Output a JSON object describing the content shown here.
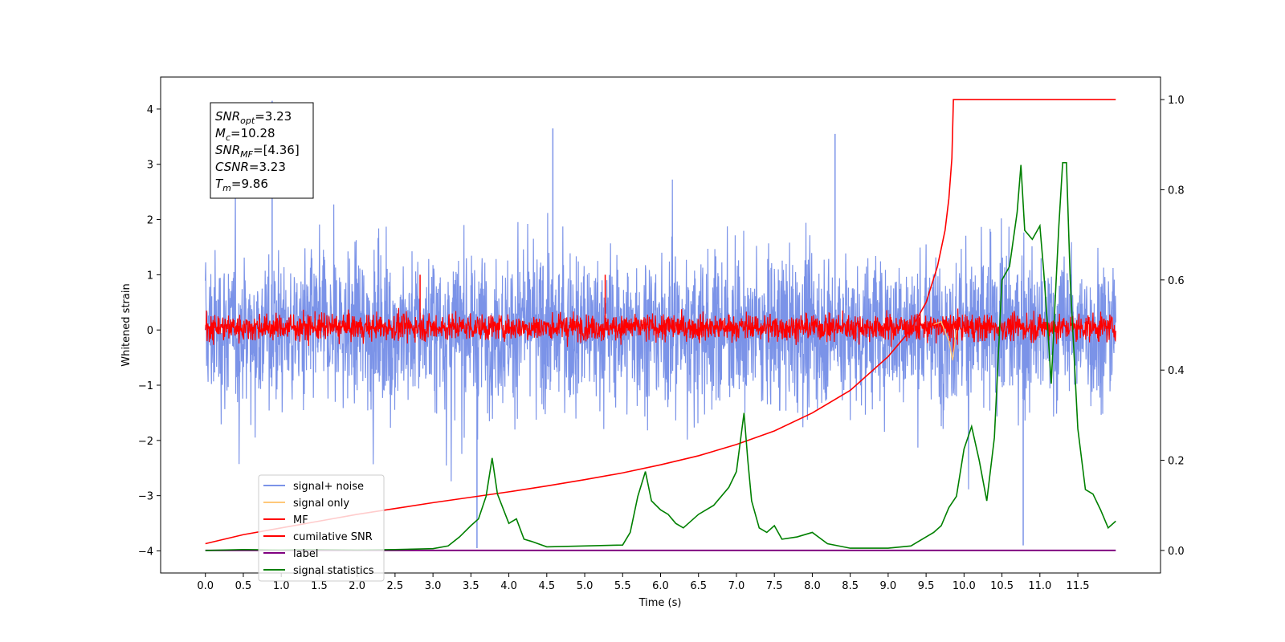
{
  "chart_data": {
    "type": "line",
    "xlabel": "Time (s)",
    "ylabel": "Whitened strain",
    "xlim": [
      -0.59,
      12.59
    ],
    "ylim": [
      -4.4,
      4.58
    ],
    "y2lim": [
      -0.05,
      1.05
    ],
    "x_ticks": [
      "0.0",
      "0.5",
      "1.0",
      "1.5",
      "2.0",
      "2.5",
      "3.0",
      "3.5",
      "4.0",
      "4.5",
      "5.0",
      "5.5",
      "6.0",
      "6.5",
      "7.0",
      "7.5",
      "8.0",
      "8.5",
      "9.0",
      "9.5",
      "10.0",
      "10.5",
      "11.0",
      "11.5"
    ],
    "y_ticks": [
      "4",
      "3",
      "2",
      "1",
      "0",
      "−1",
      "−2",
      "−3",
      "−4"
    ],
    "y2_ticks": [
      "1.0",
      "0.8",
      "0.6",
      "0.4",
      "0.2",
      "0.0"
    ],
    "annotation": {
      "lines": [
        {
          "var": "SNR",
          "sub": "opt",
          "value": "=3.23"
        },
        {
          "var": "M",
          "sub": "c",
          "value": "=10.28"
        },
        {
          "var": "SNR",
          "sub": "MF",
          "value": "=[4.36]"
        },
        {
          "var": "CSNR",
          "sub": "",
          "value": "=3.23"
        },
        {
          "var": "T",
          "sub": "m",
          "value": "=9.86"
        }
      ]
    },
    "legend": {
      "placement": "lower-left",
      "entries": [
        {
          "label": "signal+ noise",
          "color": "#7b93e8"
        },
        {
          "label": "signal only",
          "color": "#ffc87a"
        },
        {
          "label": "MF",
          "color": "#ff0000"
        },
        {
          "label": "cumilative SNR",
          "color": "#ff0000"
        },
        {
          "label": "label",
          "color": "#800080"
        },
        {
          "label": "signal statistics",
          "color": "#008000"
        }
      ]
    },
    "noise_band": {
      "t_start": 0.0,
      "t_end": 12.0,
      "typical_range": [
        -1.6,
        1.6
      ],
      "peaks": [
        4.15,
        3.65,
        3.55,
        -3.95,
        -3.9
      ]
    },
    "mf_band": {
      "t_start": 0.0,
      "t_end": 12.0,
      "typical_range": [
        -0.35,
        0.55
      ],
      "peaks": [
        1.0,
        1.0,
        -0.4
      ]
    },
    "signal_only": {
      "x": [
        9.6,
        9.7,
        9.8,
        9.85,
        9.9
      ],
      "y": [
        0.1,
        0.15,
        -0.2,
        -0.55,
        0.0
      ]
    },
    "cumulative_snr": {
      "axis": "right",
      "x": [
        0.0,
        0.5,
        1.0,
        1.5,
        2.0,
        2.5,
        3.0,
        3.5,
        4.0,
        4.5,
        5.0,
        5.5,
        6.0,
        6.5,
        7.0,
        7.5,
        8.0,
        8.5,
        9.0,
        9.3,
        9.5,
        9.65,
        9.75,
        9.8,
        9.84,
        9.86,
        12.0
      ],
      "y": [
        0.015,
        0.035,
        0.05,
        0.065,
        0.08,
        0.093,
        0.106,
        0.118,
        0.13,
        0.143,
        0.157,
        0.172,
        0.19,
        0.21,
        0.235,
        0.265,
        0.305,
        0.355,
        0.43,
        0.49,
        0.55,
        0.63,
        0.71,
        0.78,
        0.87,
        1.0,
        1.0
      ]
    },
    "label": {
      "axis": "right",
      "x": [
        0.0,
        12.0
      ],
      "y": [
        0.0,
        0.0
      ]
    },
    "signal_statistics": {
      "axis": "right",
      "x": [
        0.0,
        0.5,
        1.0,
        1.5,
        2.0,
        2.5,
        3.0,
        3.2,
        3.35,
        3.5,
        3.6,
        3.7,
        3.78,
        3.85,
        4.0,
        4.1,
        4.2,
        4.3,
        4.5,
        5.0,
        5.5,
        5.6,
        5.7,
        5.8,
        5.88,
        6.0,
        6.1,
        6.2,
        6.3,
        6.5,
        6.7,
        6.9,
        7.0,
        7.1,
        7.15,
        7.2,
        7.3,
        7.4,
        7.5,
        7.6,
        7.8,
        8.0,
        8.2,
        8.5,
        8.8,
        9.0,
        9.3,
        9.5,
        9.6,
        9.7,
        9.8,
        9.9,
        10.0,
        10.1,
        10.2,
        10.3,
        10.4,
        10.5,
        10.6,
        10.7,
        10.75,
        10.8,
        10.9,
        11.0,
        11.05,
        11.1,
        11.15,
        11.2,
        11.25,
        11.3,
        11.35,
        11.4,
        11.5,
        11.6,
        11.7,
        11.8,
        11.9,
        12.0
      ],
      "y": [
        0.0,
        0.002,
        0.001,
        0.002,
        0.001,
        0.002,
        0.004,
        0.01,
        0.03,
        0.055,
        0.07,
        0.12,
        0.205,
        0.125,
        0.06,
        0.07,
        0.025,
        0.02,
        0.008,
        0.01,
        0.012,
        0.04,
        0.12,
        0.175,
        0.11,
        0.09,
        0.08,
        0.06,
        0.05,
        0.08,
        0.1,
        0.14,
        0.175,
        0.305,
        0.2,
        0.11,
        0.05,
        0.04,
        0.055,
        0.025,
        0.03,
        0.04,
        0.015,
        0.005,
        0.005,
        0.005,
        0.01,
        0.03,
        0.04,
        0.055,
        0.095,
        0.12,
        0.225,
        0.275,
        0.2,
        0.11,
        0.25,
        0.6,
        0.63,
        0.75,
        0.855,
        0.71,
        0.69,
        0.72,
        0.62,
        0.5,
        0.37,
        0.55,
        0.72,
        0.86,
        0.86,
        0.6,
        0.27,
        0.135,
        0.125,
        0.09,
        0.05,
        0.065
      ]
    }
  }
}
